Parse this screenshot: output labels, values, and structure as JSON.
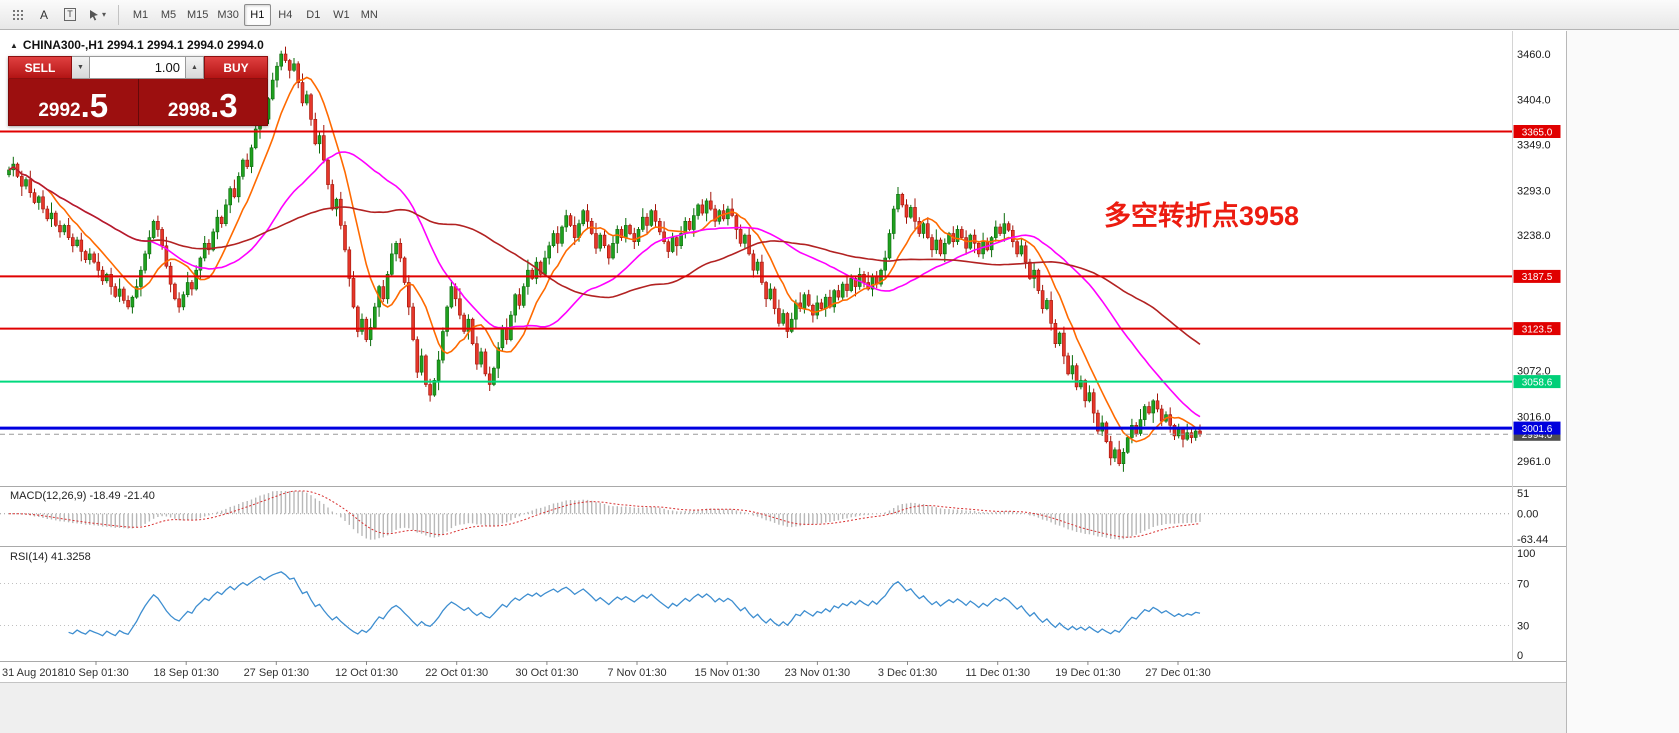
{
  "toolbar": {
    "tool_a_label": "A",
    "tool_t_label": "T",
    "caret_icon": "▾",
    "timeframes": [
      "M1",
      "M5",
      "M15",
      "M30",
      "H1",
      "H4",
      "D1",
      "W1",
      "MN"
    ],
    "active_timeframe": "H1"
  },
  "chart_header": {
    "collapse_icon": "▲",
    "symbol_line": "CHINA300-,H1  2994.1 2994.1 2994.0 2994.0"
  },
  "trade_panel": {
    "sell_label": "SELL",
    "buy_label": "BUY",
    "volume": "1.00",
    "volume_down_icon": "▼",
    "volume_up_icon": "▲",
    "sell_price_main": "2992",
    "sell_price_big": ".5",
    "buy_price_main": "2998",
    "buy_price_big": ".3"
  },
  "annotation": {
    "text": "多空转折点3958",
    "color": "#ec1c10"
  },
  "y_axis": {
    "range": [
      2938,
      3482
    ],
    "ticks": [
      3460,
      3404,
      3349,
      3293,
      3238,
      3182,
      3127,
      3072,
      3016,
      2961
    ]
  },
  "x_axis": {
    "labels": [
      "31 Aug 2018",
      "10 Sep 01:30",
      "18 Sep 01:30",
      "27 Sep 01:30",
      "12 Oct 01:30",
      "22 Oct 01:30",
      "30 Oct 01:30",
      "7 Nov 01:30",
      "15 Nov 01:30",
      "23 Nov 01:30",
      "3 Dec 01:30",
      "11 Dec 01:30",
      "19 Dec 01:30",
      "27 Dec 01:30"
    ]
  },
  "levels": [
    {
      "price": 3365.0,
      "label": "3365.0",
      "color": "#e00000",
      "badge": "#e00000",
      "style": "solid",
      "width": 2
    },
    {
      "price": 3187.5,
      "label": "3187.5",
      "color": "#e00000",
      "badge": "#e00000",
      "style": "solid",
      "width": 2
    },
    {
      "price": 3123.5,
      "label": "3123.5",
      "color": "#e00000",
      "badge": "#e00000",
      "style": "solid",
      "width": 2
    },
    {
      "price": 3058.6,
      "label": "3058.6",
      "color": "#00d97e",
      "badge": "#00cf78",
      "style": "solid",
      "width": 2
    },
    {
      "price": 2994.0,
      "label": "2994.0",
      "color": "#9a9a9a",
      "badge": "#4f4f4f",
      "style": "dashed",
      "width": 1
    },
    {
      "price": 3001.6,
      "label": "3001.6",
      "color": "#0000e0",
      "badge": "#0000dd",
      "style": "solid",
      "width": 3
    }
  ],
  "indicators": {
    "macd": {
      "label": "MACD(12,26,9) -18.49 -21.40",
      "fast": 12,
      "slow": 26,
      "signal": 9,
      "range": [
        -63.44,
        51
      ],
      "axis": [
        "51",
        "0.00",
        "-63.44"
      ],
      "histogram_color": "#b8b8b8",
      "signal_color": "#d83030"
    },
    "rsi": {
      "label": "RSI(14) 41.3258",
      "period": 14,
      "range": [
        0,
        100
      ],
      "levels": [
        70,
        30
      ],
      "axis": [
        "100",
        "70",
        "30",
        "0"
      ],
      "color": "#3e8ed0"
    }
  },
  "chart_data": {
    "type": "candlestick",
    "symbol": "CHINA300-",
    "timeframe": "H1",
    "current_ohlc": {
      "open": 2994.1,
      "high": 2994.1,
      "low": 2994.0,
      "close": 2994.0
    },
    "up_color": "#1fa01f",
    "up_border": "#0b6b0b",
    "down_color": "#e5362a",
    "down_border": "#a31408",
    "moving_averages": [
      {
        "period": 10,
        "color": "#ff6a00"
      },
      {
        "period": 34,
        "color": "#ff00ff"
      },
      {
        "period": 62,
        "color": "#b22222"
      }
    ],
    "candles": {
      "first_open": 3312,
      "wick_up": [
        4,
        9,
        2,
        7,
        3,
        11,
        5,
        2,
        8,
        4,
        13,
        3,
        6,
        2,
        9,
        5
      ],
      "wick_down": [
        3,
        8,
        2,
        12,
        4,
        6,
        2,
        9,
        5,
        3,
        10,
        2,
        7,
        4
      ],
      "closes": [
        3318,
        3325,
        3310,
        3298,
        3306,
        3290,
        3278,
        3285,
        3270,
        3258,
        3265,
        3250,
        3242,
        3250,
        3235,
        3225,
        3232,
        3218,
        3208,
        3215,
        3205,
        3195,
        3182,
        3190,
        3175,
        3163,
        3172,
        3158,
        3150,
        3162,
        3175,
        3195,
        3215,
        3235,
        3255,
        3245,
        3225,
        3200,
        3178,
        3160,
        3150,
        3165,
        3180,
        3172,
        3195,
        3210,
        3228,
        3220,
        3242,
        3260,
        3252,
        3275,
        3295,
        3285,
        3310,
        3330,
        3322,
        3345,
        3368,
        3390,
        3380,
        3405,
        3428,
        3445,
        3460,
        3452,
        3440,
        3448,
        3425,
        3400,
        3410,
        3380,
        3350,
        3360,
        3330,
        3300,
        3270,
        3282,
        3250,
        3220,
        3185,
        3150,
        3120,
        3135,
        3110,
        3125,
        3150,
        3175,
        3160,
        3190,
        3215,
        3228,
        3210,
        3180,
        3150,
        3110,
        3070,
        3090,
        3055,
        3042,
        3060,
        3085,
        3120,
        3150,
        3175,
        3160,
        3140,
        3120,
        3135,
        3105,
        3080,
        3095,
        3068,
        3055,
        3075,
        3100,
        3125,
        3110,
        3140,
        3165,
        3152,
        3175,
        3195,
        3185,
        3205,
        3190,
        3210,
        3225,
        3240,
        3228,
        3248,
        3262,
        3250,
        3235,
        3252,
        3268,
        3255,
        3240,
        3222,
        3238,
        3225,
        3210,
        3228,
        3245,
        3235,
        3250,
        3240,
        3230,
        3245,
        3260,
        3250,
        3268,
        3255,
        3242,
        3230,
        3218,
        3235,
        3225,
        3240,
        3255,
        3245,
        3262,
        3275,
        3265,
        3280,
        3270,
        3255,
        3268,
        3258,
        3270,
        3262,
        3245,
        3228,
        3238,
        3215,
        3195,
        3205,
        3180,
        3160,
        3172,
        3148,
        3130,
        3142,
        3120,
        3135,
        3155,
        3148,
        3165,
        3152,
        3140,
        3155,
        3148,
        3162,
        3150,
        3170,
        3162,
        3178,
        3170,
        3185,
        3175,
        3190,
        3180,
        3172,
        3188,
        3178,
        3195,
        3210,
        3240,
        3270,
        3288,
        3275,
        3260,
        3272,
        3255,
        3240,
        3252,
        3235,
        3220,
        3232,
        3215,
        3228,
        3240,
        3230,
        3245,
        3235,
        3222,
        3238,
        3228,
        3215,
        3230,
        3220,
        3235,
        3248,
        3240,
        3252,
        3244,
        3230,
        3215,
        3225,
        3205,
        3185,
        3195,
        3170,
        3148,
        3158,
        3130,
        3105,
        3118,
        3090,
        3068,
        3078,
        3052,
        3060,
        3035,
        3045,
        3020,
        2998,
        3008,
        2985,
        2965,
        2975,
        2958,
        2972,
        2990,
        3005,
        2995,
        3012,
        3028,
        3020,
        3035,
        3025,
        3010,
        3018,
        3005,
        2992,
        3000,
        2988,
        2996,
        2990,
        2998,
        2994
      ]
    }
  }
}
